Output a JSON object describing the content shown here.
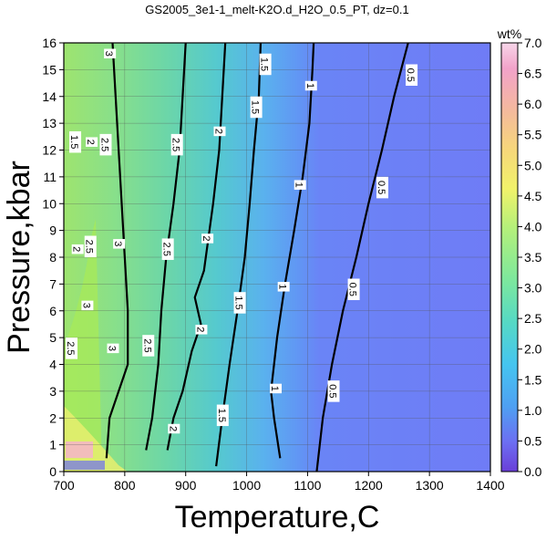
{
  "chart_data": {
    "type": "heatmap",
    "title": "GS2005_3e1-1_melt-K2O.d_H2O_0.5_PT, dz=0.1",
    "xlabel": "Temperature,C",
    "ylabel": "Pressure,kbar",
    "xlim": [
      700,
      1400
    ],
    "ylim": [
      0,
      16
    ],
    "xticks": [
      700,
      800,
      900,
      1000,
      1100,
      1200,
      1300,
      1400
    ],
    "yticks": [
      0,
      1,
      2,
      3,
      4,
      5,
      6,
      7,
      8,
      9,
      10,
      11,
      12,
      13,
      14,
      15,
      16
    ],
    "grid": true,
    "colorbar": {
      "title": "wt%",
      "range": [
        0.0,
        7.0
      ],
      "ticks": [
        "0.0",
        "0.5",
        "1.0",
        "1.5",
        "2.0",
        "2.5",
        "3.0",
        "3.5",
        "4.0",
        "4.5",
        "5.0",
        "5.5",
        "6.0",
        "6.5",
        "7.0"
      ]
    },
    "contours": [
      {
        "level": "0.5",
        "points": [
          [
            1115,
            0
          ],
          [
            1125,
            2
          ],
          [
            1140,
            4
          ],
          [
            1158,
            6
          ],
          [
            1180,
            8
          ],
          [
            1200,
            10
          ],
          [
            1222,
            12
          ],
          [
            1242,
            14
          ],
          [
            1265,
            16
          ]
        ]
      },
      {
        "level": "1",
        "points": [
          [
            1055,
            0.5
          ],
          [
            1045,
            2
          ],
          [
            1040,
            3
          ],
          [
            1050,
            5
          ],
          [
            1063,
            7
          ],
          [
            1078,
            9
          ],
          [
            1092,
            11
          ],
          [
            1103,
            13
          ],
          [
            1108,
            15
          ],
          [
            1110,
            16
          ]
        ]
      },
      {
        "level": "1.5",
        "points": [
          [
            950,
            0.2
          ],
          [
            960,
            2
          ],
          [
            972,
            4
          ],
          [
            985,
            6
          ],
          [
            997,
            8
          ],
          [
            1005,
            10
          ],
          [
            1012,
            12
          ],
          [
            1020,
            14
          ],
          [
            1023,
            16
          ]
        ]
      },
      {
        "level": "2",
        "points": [
          [
            870,
            0.8
          ],
          [
            880,
            2
          ],
          [
            895,
            3
          ],
          [
            910,
            4.5
          ],
          [
            925,
            5.5
          ],
          [
            915,
            6.5
          ],
          [
            930,
            7.5
          ],
          [
            945,
            10
          ],
          [
            955,
            12
          ],
          [
            960,
            14
          ],
          [
            965,
            16
          ]
        ]
      },
      {
        "level": "2.5",
        "points": [
          [
            835,
            0.8
          ],
          [
            845,
            2
          ],
          [
            855,
            4
          ],
          [
            860,
            6
          ],
          [
            868,
            8
          ],
          [
            880,
            10
          ],
          [
            890,
            12
          ],
          [
            895,
            14
          ],
          [
            900,
            16
          ]
        ]
      },
      {
        "level": "3",
        "points": [
          [
            770,
            0.5
          ],
          [
            775,
            2
          ],
          [
            790,
            3
          ],
          [
            805,
            4
          ],
          [
            805,
            6
          ],
          [
            800,
            8
          ],
          [
            795,
            10
          ],
          [
            790,
            12
          ],
          [
            785,
            14
          ],
          [
            780,
            16
          ]
        ]
      }
    ],
    "contour_labels": [
      {
        "text": "0.5",
        "x": 1270,
        "y": 14.8
      },
      {
        "text": "0.5",
        "x": 1222,
        "y": 10.6
      },
      {
        "text": "0.5",
        "x": 1175,
        "y": 6.8
      },
      {
        "text": "0.5",
        "x": 1142,
        "y": 3.0
      },
      {
        "text": "1",
        "x": 1105,
        "y": 14.4
      },
      {
        "text": "1",
        "x": 1087,
        "y": 10.7
      },
      {
        "text": "1",
        "x": 1060,
        "y": 6.9
      },
      {
        "text": "1",
        "x": 1047,
        "y": 3.1
      },
      {
        "text": "1.5",
        "x": 1015,
        "y": 13.6
      },
      {
        "text": "1.5",
        "x": 1030,
        "y": 15.2
      },
      {
        "text": "1.5",
        "x": 988,
        "y": 6.3
      },
      {
        "text": "1.5",
        "x": 960,
        "y": 2.1
      },
      {
        "text": "1.5",
        "x": 718,
        "y": 12.3
      },
      {
        "text": "2",
        "x": 955,
        "y": 12.7
      },
      {
        "text": "2",
        "x": 935,
        "y": 8.7
      },
      {
        "text": "2",
        "x": 925,
        "y": 5.3
      },
      {
        "text": "2",
        "x": 880,
        "y": 1.6
      },
      {
        "text": "2",
        "x": 745,
        "y": 12.3
      },
      {
        "text": "2",
        "x": 722,
        "y": 8.3
      },
      {
        "text": "2.5",
        "x": 885,
        "y": 12.2
      },
      {
        "text": "2.5",
        "x": 870,
        "y": 8.3
      },
      {
        "text": "2.5",
        "x": 838,
        "y": 4.7
      },
      {
        "text": "2.5",
        "x": 768,
        "y": 12.2
      },
      {
        "text": "2.5",
        "x": 743,
        "y": 8.4
      },
      {
        "text": "2.5",
        "x": 712,
        "y": 4.6
      },
      {
        "text": "3",
        "x": 775,
        "y": 15.6
      },
      {
        "text": "3",
        "x": 790,
        "y": 8.5
      },
      {
        "text": "3",
        "x": 780,
        "y": 4.6
      },
      {
        "text": "3",
        "x": 738,
        "y": 6.2
      }
    ]
  }
}
